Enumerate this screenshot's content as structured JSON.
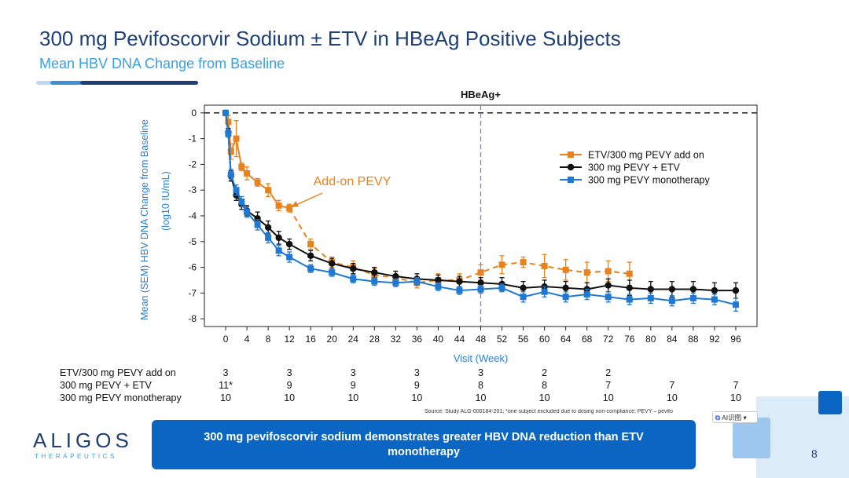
{
  "slide": {
    "title": "300 mg Pevifoscorvir Sodium ± ETV in HBeAg Positive Subjects",
    "subtitle": "Mean HBV DNA Change from Baseline",
    "page_number": "8",
    "source": "Source: Study ALG-000184-201; *one subject excluded due to dosing non-compliance; PEVY – pevifo",
    "ai_button": "AI识图",
    "callout": "300 mg pevifoscorvir sodium demonstrates greater HBV DNA reduction than ETV monotherapy",
    "logo": {
      "name": "ALIGOS",
      "tagline": "THERAPEUTICS"
    },
    "colors": {
      "title": "#1d3f73",
      "accent": "#3aa0e0",
      "callout_bg": "#0a66c2"
    }
  },
  "chart_data": {
    "type": "line",
    "title": "HBeAg+",
    "xlabel": "Visit (Week)",
    "ylabel": "Mean (SEM) HBV DNA Change from Baseline",
    "ylabel2": "(log10 IU/mL)",
    "x_ticks": [
      0,
      4,
      8,
      12,
      16,
      20,
      24,
      28,
      32,
      36,
      40,
      44,
      48,
      52,
      56,
      60,
      64,
      68,
      72,
      76,
      80,
      84,
      88,
      92,
      96
    ],
    "y_ticks": [
      0,
      -1,
      -2,
      -3,
      -4,
      -5,
      -6,
      -7,
      -8
    ],
    "xlim": [
      -4,
      100
    ],
    "ylim": [
      -8.3,
      0.3
    ],
    "reference_lines": {
      "horizontal_y": 0,
      "vertical_x": 48
    },
    "annotation": {
      "text": "Add-on PEVY",
      "x": 12,
      "y": -3.7
    },
    "legend_position": "top-right",
    "series": [
      {
        "name": "ETV/300 mg PEVY add on",
        "color": "#e8821e",
        "marker": "square",
        "dashed_after_x": 12,
        "x": [
          0,
          0.5,
          1,
          2,
          3,
          4,
          6,
          8,
          10,
          12,
          16,
          20,
          24,
          28,
          32,
          36,
          40,
          44,
          48,
          52,
          56,
          60,
          64,
          68,
          72,
          76
        ],
        "y": [
          0,
          -0.35,
          -1.5,
          -1.0,
          -2.1,
          -2.35,
          -2.7,
          -3.0,
          -3.6,
          -3.7,
          -5.1,
          -5.8,
          -6.0,
          -6.3,
          -6.4,
          -6.6,
          -6.5,
          -6.5,
          -6.2,
          -5.9,
          -5.8,
          -5.95,
          -6.1,
          -6.2,
          -6.15,
          -6.25
        ],
        "err": [
          0,
          0.25,
          0.3,
          0.7,
          0.15,
          0.25,
          0.15,
          0.25,
          0.2,
          0.15,
          0.2,
          0.2,
          0.25,
          0.25,
          0.25,
          0.2,
          0.25,
          0.25,
          0.3,
          0.35,
          0.2,
          0.45,
          0.4,
          0.4,
          0.4,
          0.45
        ]
      },
      {
        "name": "300 mg PEVY + ETV",
        "color": "#111111",
        "marker": "circle",
        "x": [
          0,
          0.5,
          1,
          2,
          3,
          4,
          6,
          8,
          10,
          12,
          16,
          20,
          24,
          28,
          32,
          36,
          40,
          44,
          48,
          52,
          56,
          60,
          64,
          68,
          72,
          76,
          80,
          84,
          88,
          92,
          96
        ],
        "y": [
          0,
          -0.75,
          -2.45,
          -3.2,
          -3.55,
          -3.8,
          -4.1,
          -4.45,
          -4.85,
          -5.1,
          -5.55,
          -5.85,
          -6.05,
          -6.2,
          -6.35,
          -6.45,
          -6.5,
          -6.55,
          -6.6,
          -6.65,
          -6.8,
          -6.75,
          -6.8,
          -6.85,
          -6.7,
          -6.8,
          -6.85,
          -6.85,
          -6.85,
          -6.9,
          -6.9
        ],
        "err": [
          0,
          0.15,
          0.2,
          0.2,
          0.2,
          0.2,
          0.25,
          0.25,
          0.25,
          0.2,
          0.2,
          0.2,
          0.2,
          0.2,
          0.2,
          0.2,
          0.2,
          0.2,
          0.2,
          0.25,
          0.25,
          0.25,
          0.25,
          0.25,
          0.25,
          0.3,
          0.3,
          0.3,
          0.3,
          0.3,
          0.3
        ]
      },
      {
        "name": "300 mg PEVY monotherapy",
        "color": "#1f78d1",
        "marker": "square",
        "x": [
          0,
          0.5,
          1,
          2,
          3,
          4,
          6,
          8,
          10,
          12,
          16,
          20,
          24,
          28,
          32,
          36,
          40,
          44,
          48,
          52,
          56,
          60,
          64,
          68,
          72,
          76,
          80,
          84,
          88,
          92,
          96
        ],
        "y": [
          0,
          -0.8,
          -2.4,
          -3.0,
          -3.45,
          -3.85,
          -4.35,
          -4.85,
          -5.35,
          -5.6,
          -6.05,
          -6.2,
          -6.45,
          -6.55,
          -6.6,
          -6.55,
          -6.75,
          -6.9,
          -6.85,
          -6.8,
          -7.15,
          -6.95,
          -7.15,
          -7.05,
          -7.15,
          -7.25,
          -7.2,
          -7.3,
          -7.2,
          -7.25,
          -7.45
        ],
        "err": [
          0,
          0.15,
          0.2,
          0.2,
          0.2,
          0.2,
          0.2,
          0.2,
          0.2,
          0.2,
          0.15,
          0.15,
          0.15,
          0.15,
          0.15,
          0.15,
          0.15,
          0.15,
          0.15,
          0.15,
          0.2,
          0.2,
          0.2,
          0.2,
          0.2,
          0.2,
          0.2,
          0.2,
          0.2,
          0.2,
          0.25
        ]
      }
    ]
  },
  "subjects_table": {
    "rows": [
      {
        "label": "ETV/300 mg PEVY add on",
        "cells": [
          {
            "x": 0,
            "n": "3"
          },
          {
            "x": 12,
            "n": "3"
          },
          {
            "x": 24,
            "n": "3"
          },
          {
            "x": 36,
            "n": "3"
          },
          {
            "x": 48,
            "n": "3"
          },
          {
            "x": 60,
            "n": "2"
          },
          {
            "x": 72,
            "n": "2"
          }
        ]
      },
      {
        "label": "300 mg PEVY + ETV",
        "cells": [
          {
            "x": 0,
            "n": "11*"
          },
          {
            "x": 12,
            "n": "9"
          },
          {
            "x": 24,
            "n": "9"
          },
          {
            "x": 36,
            "n": "9"
          },
          {
            "x": 48,
            "n": "8"
          },
          {
            "x": 60,
            "n": "8"
          },
          {
            "x": 72,
            "n": "7"
          },
          {
            "x": 84,
            "n": "7"
          },
          {
            "x": 96,
            "n": "7"
          }
        ]
      },
      {
        "label": "300 mg PEVY monotherapy",
        "cells": [
          {
            "x": 0,
            "n": "10"
          },
          {
            "x": 12,
            "n": "10"
          },
          {
            "x": 24,
            "n": "10"
          },
          {
            "x": 36,
            "n": "10"
          },
          {
            "x": 48,
            "n": "10"
          },
          {
            "x": 60,
            "n": "10"
          },
          {
            "x": 72,
            "n": "10"
          },
          {
            "x": 84,
            "n": "10"
          },
          {
            "x": 96,
            "n": "10"
          }
        ]
      }
    ]
  }
}
